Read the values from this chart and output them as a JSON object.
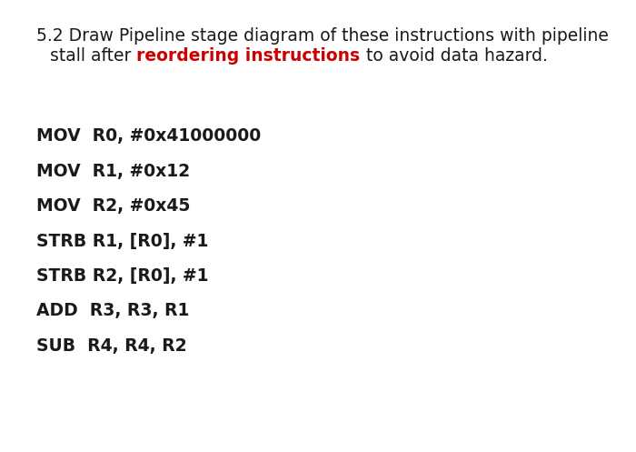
{
  "background_color": "#ffffff",
  "fig_width": 7.0,
  "fig_height": 4.97,
  "dpi": 100,
  "header_line1": "5.2 Draw Pipeline stage diagram of these instructions with pipeline",
  "header_line2_parts": [
    {
      "text": "stall after ",
      "color": "#1a1a1a",
      "bold": false
    },
    {
      "text": "reordering instructions",
      "color": "#cc0000",
      "bold": true
    },
    {
      "text": " to avoid data hazard.",
      "color": "#1a1a1a",
      "bold": false
    }
  ],
  "header_fontsize": 13.5,
  "header_color": "#1a1a1a",
  "instructions": [
    "MOV  R0, #0x41000000",
    "MOV  R1, #0x12",
    "MOV  R2, #0x45",
    "STRB R1, [R0], #1",
    "STRB R2, [R0], #1",
    "ADD  R3, R3, R1",
    "SUB  R4, R4, R2"
  ],
  "instruction_fontsize": 13.5,
  "instruction_color": "#1a1a1a"
}
